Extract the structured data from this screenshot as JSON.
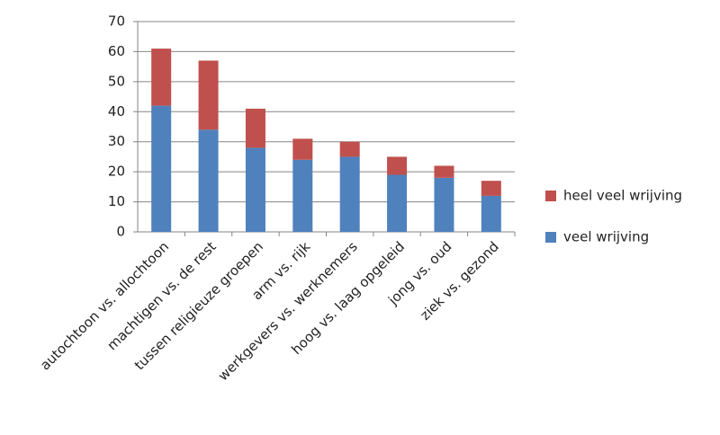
{
  "chart_data": {
    "type": "bar",
    "stacked": true,
    "categories": [
      "autochtoon vs. allochtoon",
      "machtigen vs. de rest",
      "tussen religieuze groepen",
      "arm vs. rijk",
      "werkgevers vs. werknemers",
      "hoog vs. laag opgeleid",
      "jong vs. oud",
      "ziek vs. gezond"
    ],
    "series": [
      {
        "name": "veel wrijving",
        "color": "#4f81bd",
        "values": [
          42,
          34,
          28,
          24,
          25,
          19,
          18,
          12
        ]
      },
      {
        "name": "heel veel wrijving",
        "color": "#c0504d",
        "values": [
          19,
          23,
          13,
          7,
          5,
          6,
          4,
          5
        ]
      }
    ],
    "ylim": [
      0,
      70
    ],
    "yticks": [
      0,
      10,
      20,
      30,
      40,
      50,
      60,
      70
    ],
    "grid": true,
    "legend": "right"
  }
}
